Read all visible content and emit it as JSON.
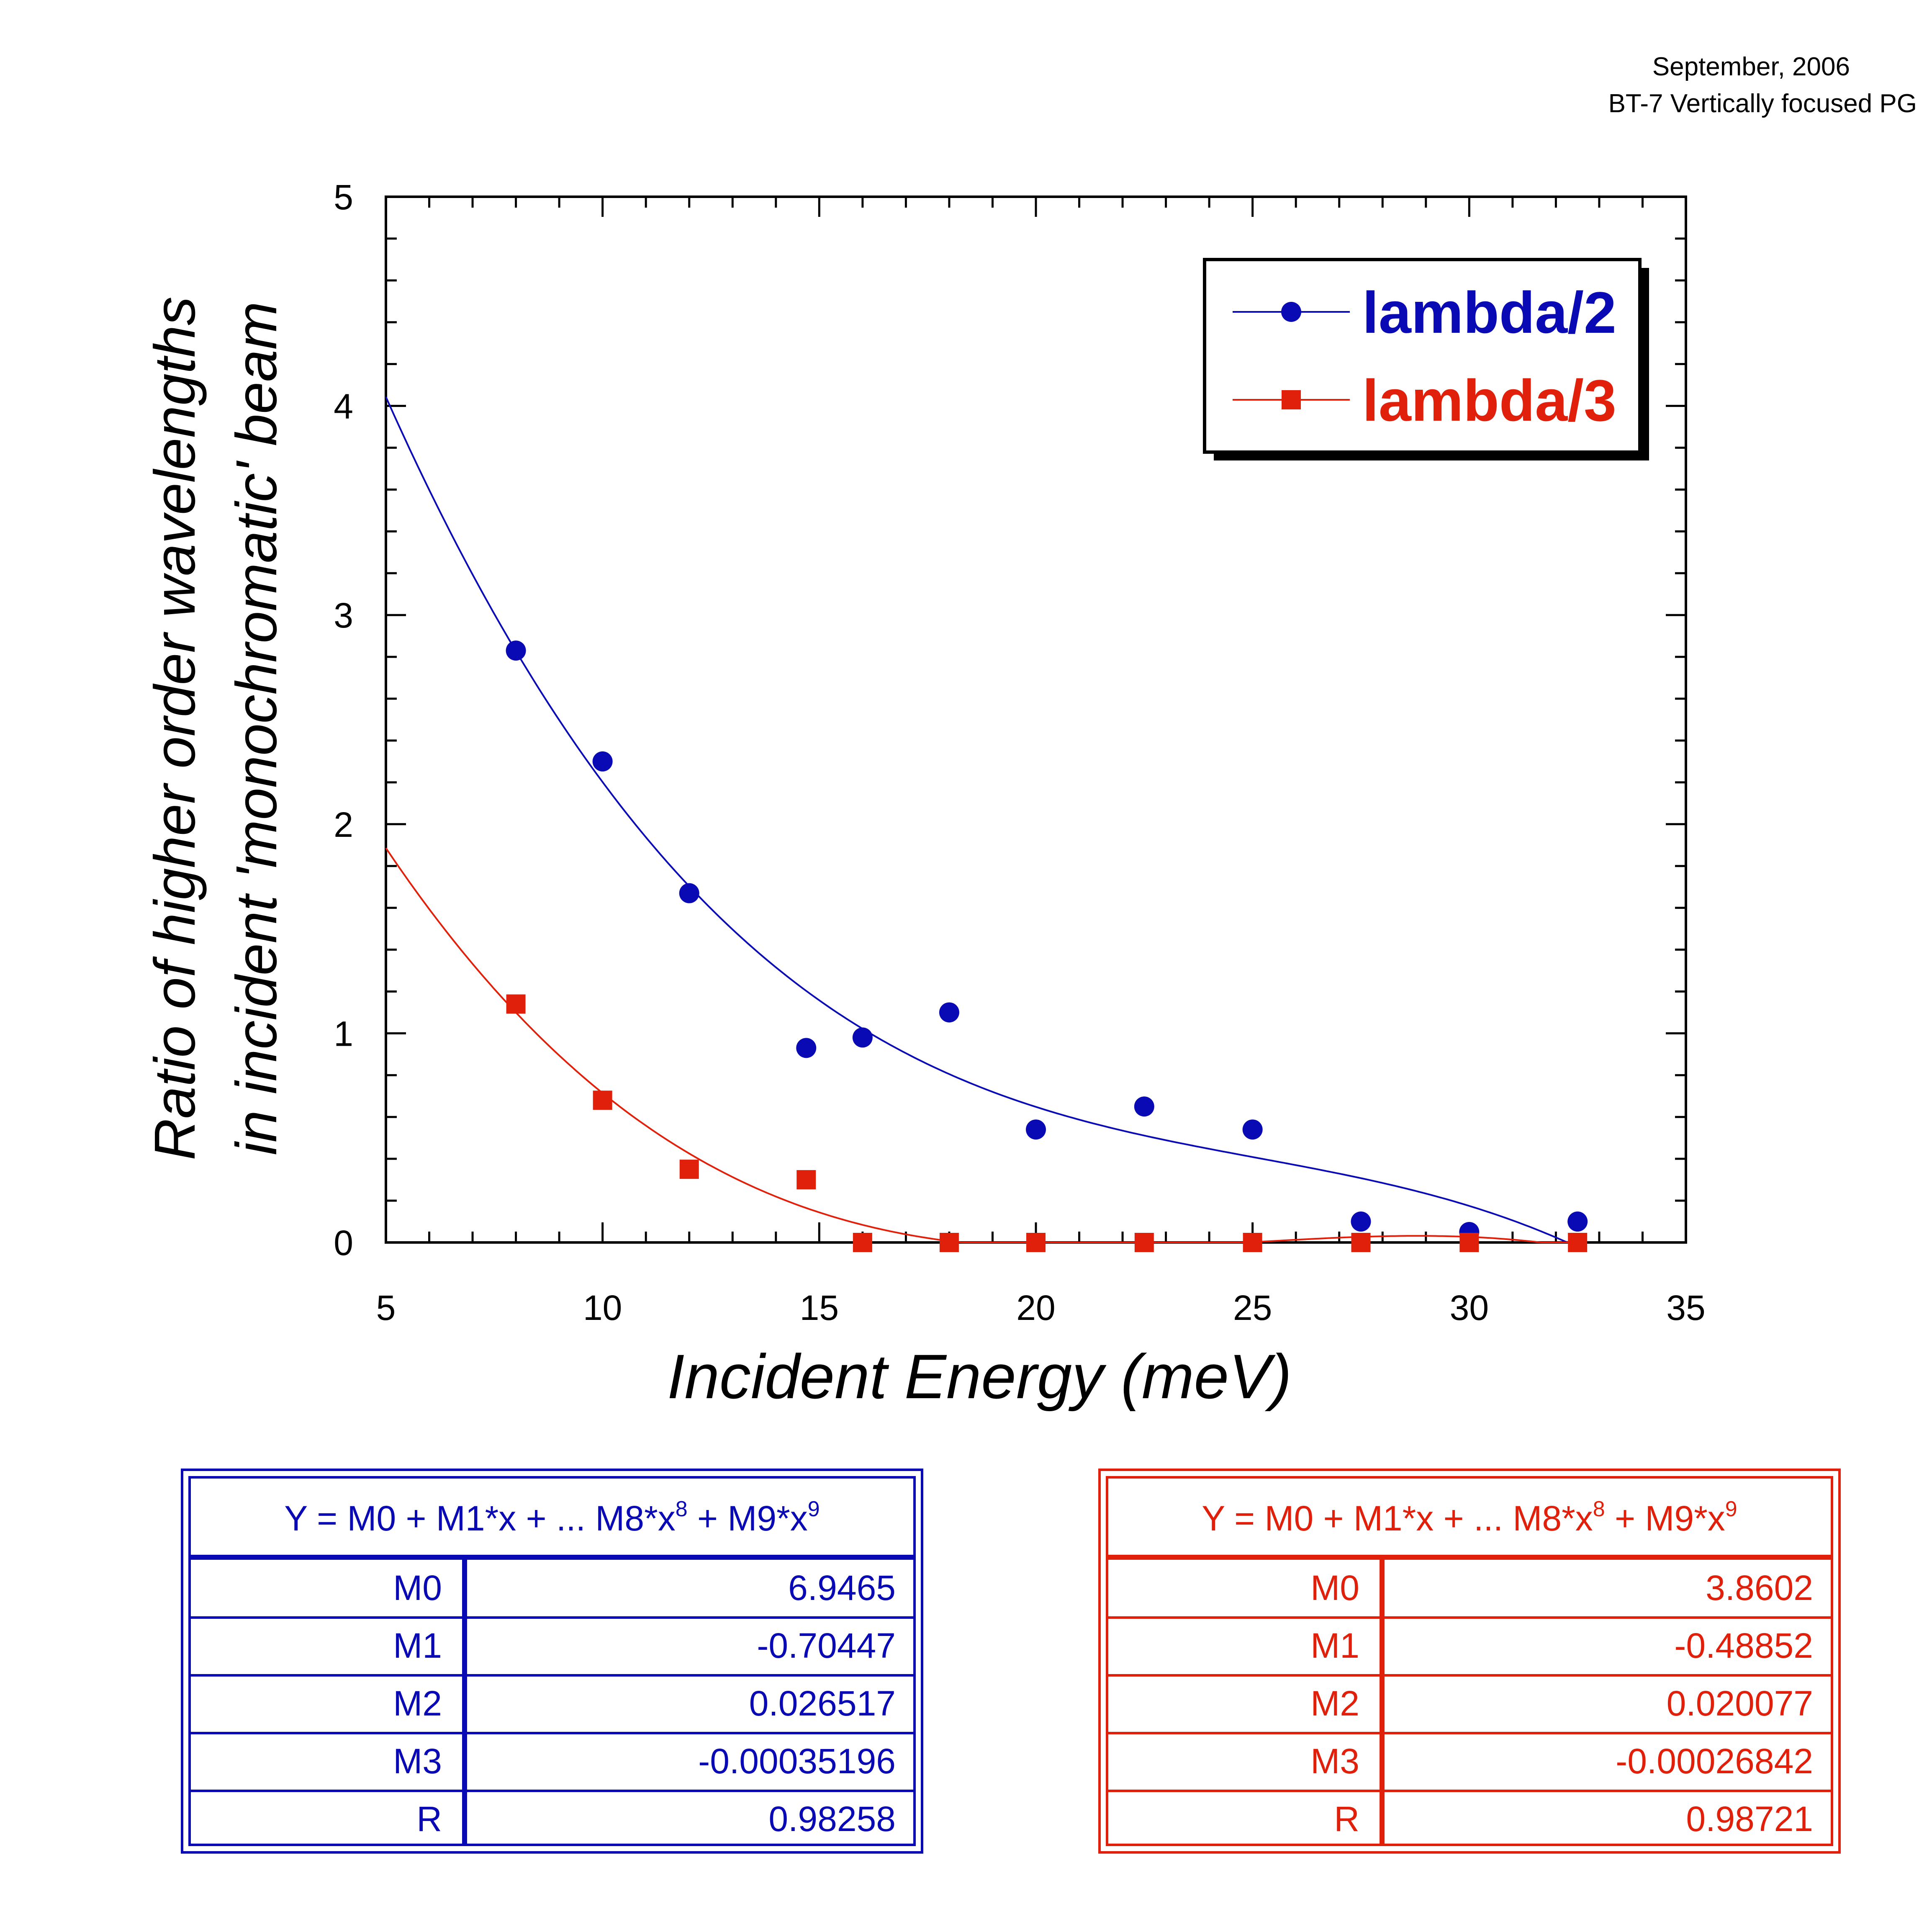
{
  "header": {
    "line1": "September, 2006",
    "line2": "BT-7 Vertically focused PG"
  },
  "colors": {
    "blue": "#0a0ab4",
    "red": "#e0200a",
    "axis": "#000000"
  },
  "chart_data": {
    "type": "scatter",
    "xlabel": "Incident Energy (meV)",
    "ylabel_line1": "Ratio of higher order wavelengths",
    "ylabel_line2": "in incident 'monochromatic' beam",
    "xlim": [
      5,
      35
    ],
    "ylim": [
      0,
      5
    ],
    "x_ticks": [
      "5",
      "10",
      "15",
      "20",
      "25",
      "30",
      "35"
    ],
    "y_ticks": [
      "0",
      "1",
      "2",
      "3",
      "4",
      "5"
    ],
    "grid": false,
    "legend_position": "top-right",
    "series": [
      {
        "name": "lambda/2",
        "color": "#0a0ab4",
        "marker": "circle",
        "x": [
          8,
          10,
          12,
          14.7,
          16,
          18,
          20,
          22.5,
          25,
          27.5,
          30,
          32.5
        ],
        "y": [
          2.83,
          2.3,
          1.67,
          0.93,
          0.98,
          1.1,
          0.54,
          0.65,
          0.54,
          0.1,
          0.05,
          0.1
        ],
        "fit": [
          6.9465,
          -0.70447,
          0.026517,
          -0.00035196
        ]
      },
      {
        "name": "lambda/3",
        "color": "#e0200a",
        "marker": "square",
        "x": [
          8,
          10,
          12,
          14.7,
          16,
          18,
          20,
          22.5,
          25,
          27.5,
          30,
          32.5
        ],
        "y": [
          1.14,
          0.68,
          0.35,
          0.3,
          0,
          0,
          0,
          0,
          0,
          0,
          0,
          0
        ],
        "fit": [
          3.8602,
          -0.48852,
          0.020077,
          -0.00026842
        ]
      }
    ]
  },
  "fits": [
    {
      "color": "#0a0ab4",
      "equation_main": "Y = M0 + M1*x + ... M8*x",
      "exp1": "8",
      "equation_mid": " + M9*x",
      "exp2": "9",
      "rows": [
        {
          "name": "M0",
          "value": "6.9465"
        },
        {
          "name": "M1",
          "value": "-0.70447"
        },
        {
          "name": "M2",
          "value": "0.026517"
        },
        {
          "name": "M3",
          "value": "-0.00035196"
        },
        {
          "name": "R",
          "value": "0.98258"
        }
      ]
    },
    {
      "color": "#e0200a",
      "equation_main": "Y = M0 + M1*x + ... M8*x",
      "exp1": "8",
      "equation_mid": " + M9*x",
      "exp2": "9",
      "rows": [
        {
          "name": "M0",
          "value": "3.8602"
        },
        {
          "name": "M1",
          "value": "-0.48852"
        },
        {
          "name": "M2",
          "value": "0.020077"
        },
        {
          "name": "M3",
          "value": "-0.00026842"
        },
        {
          "name": "R",
          "value": "0.98721"
        }
      ]
    }
  ]
}
